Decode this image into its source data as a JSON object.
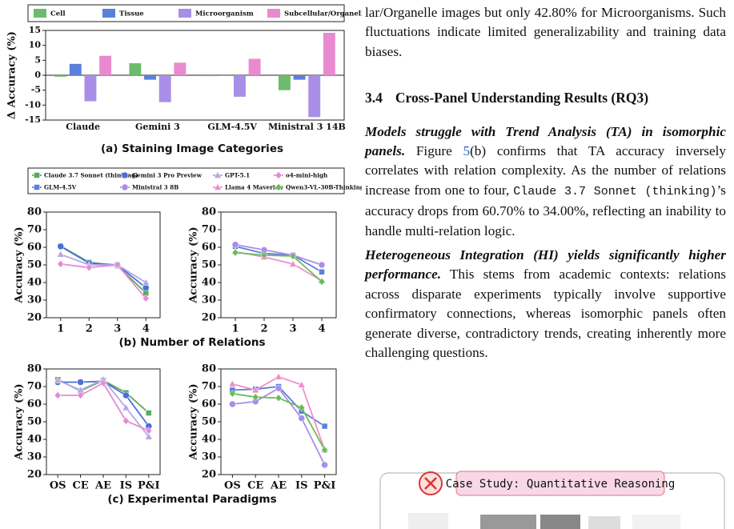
{
  "chart_data": [
    {
      "type": "bar",
      "ylabel": "Δ Accuracy (%)",
      "caption": "(a) Staining Image Categories",
      "categories": [
        "Claude",
        "Gemini 3",
        "GLM-4.5V",
        "Ministral 3 14B"
      ],
      "series": [
        {
          "name": "Cell",
          "color": "#6dbb6d",
          "values": [
            -0.5,
            4,
            -0.3,
            -5
          ]
        },
        {
          "name": "Tissue",
          "color": "#5b7fdc",
          "values": [
            3.8,
            -1.5,
            -0.2,
            -1.5
          ]
        },
        {
          "name": "Microorganism",
          "color": "#a98ee8",
          "values": [
            -8.7,
            -9,
            -7.2,
            -14
          ]
        },
        {
          "name": "Subcellular/Organelle",
          "color": "#e98ad0",
          "values": [
            6.5,
            4.2,
            5.5,
            14.2
          ]
        }
      ],
      "ylim": [
        -15,
        15
      ],
      "yticks": [
        -15,
        -10,
        -5,
        0,
        5,
        10,
        15
      ]
    },
    {
      "type": "line",
      "ylabel": "Accuracy (%)",
      "caption": "(b) Number of Relations",
      "categories": [
        "1",
        "2",
        "3",
        "4"
      ],
      "series": [
        {
          "name": "Claude 3.7 Sonnet (thinking)",
          "color": "#5aab5a",
          "marker": "square",
          "values": [
            60.7,
            51.5,
            49.5,
            34
          ]
        },
        {
          "name": "Gemini 3 Pro Preview",
          "color": "#4a6fd6",
          "marker": "circle",
          "values": [
            60.5,
            51,
            50,
            37
          ]
        },
        {
          "name": "GPT-5.1",
          "color": "#b5a6e8",
          "marker": "triangle",
          "values": [
            56,
            50,
            50,
            40
          ]
        },
        {
          "name": "o4-mini-high",
          "color": "#e58ad6",
          "marker": "diamond",
          "values": [
            50.5,
            48.5,
            50,
            31
          ]
        }
      ],
      "ylim": [
        20,
        80
      ],
      "yticks": [
        20,
        30,
        40,
        50,
        60,
        70,
        80
      ]
    },
    {
      "type": "line",
      "ylabel": "Accuracy (%)",
      "categories": [
        "1",
        "2",
        "3",
        "4"
      ],
      "series": [
        {
          "name": "GLM-4.5V",
          "color": "#5b7fdc",
          "marker": "square",
          "values": [
            60.5,
            56.5,
            55.5,
            46
          ]
        },
        {
          "name": "Ministral 3 8B",
          "color": "#a98ee8",
          "marker": "circle",
          "values": [
            61.5,
            58.5,
            55.5,
            50
          ]
        },
        {
          "name": "Llama 4 Maverick",
          "color": "#f08fc8",
          "marker": "triangle",
          "values": [
            57.5,
            54.5,
            50.5,
            41
          ]
        },
        {
          "name": "Qwen3-VL-30B-Thinking",
          "color": "#6cbb5a",
          "marker": "diamond",
          "values": [
            57,
            55.5,
            55,
            40.5
          ]
        }
      ],
      "ylim": [
        20,
        80
      ],
      "yticks": [
        20,
        30,
        40,
        50,
        60,
        70,
        80
      ]
    },
    {
      "type": "line",
      "ylabel": "Accuracy (%)",
      "caption": "(c) Experimental Paradigms",
      "categories": [
        "OS",
        "CE",
        "AE",
        "IS",
        "P&I"
      ],
      "series": [
        {
          "name": "Claude 3.7 Sonnet (thinking)",
          "color": "#5aab5a",
          "marker": "square",
          "values": [
            74,
            67.5,
            73.5,
            66.5,
            55
          ]
        },
        {
          "name": "Gemini 3 Pro Preview",
          "color": "#4a6fd6",
          "marker": "circle",
          "values": [
            72.5,
            72.5,
            73,
            65,
            47.5
          ]
        },
        {
          "name": "GPT-5.1",
          "color": "#b5a6e8",
          "marker": "triangle",
          "values": [
            73.5,
            68,
            74,
            58,
            41.5
          ]
        },
        {
          "name": "o4-mini-high",
          "color": "#e58ad6",
          "marker": "diamond",
          "values": [
            65,
            65,
            72,
            50.5,
            45
          ]
        }
      ],
      "ylim": [
        20,
        80
      ],
      "yticks": [
        20,
        30,
        40,
        50,
        60,
        70,
        80
      ]
    },
    {
      "type": "line",
      "ylabel": "Accuracy (%)",
      "categories": [
        "OS",
        "CE",
        "AE",
        "IS",
        "P&I"
      ],
      "series": [
        {
          "name": "GLM-4.5V",
          "color": "#5b7fdc",
          "marker": "square",
          "values": [
            68,
            68.5,
            70,
            56,
            47.5
          ]
        },
        {
          "name": "Ministral 3 8B",
          "color": "#a98ee8",
          "marker": "circle",
          "values": [
            60,
            61.5,
            69,
            52,
            25.5
          ]
        },
        {
          "name": "Llama 4 Maverick",
          "color": "#f08fc8",
          "marker": "triangle",
          "values": [
            71.5,
            68,
            75.5,
            71,
            34
          ]
        },
        {
          "name": "Qwen3-VL-30B-Thinking",
          "color": "#6cbb5a",
          "marker": "diamond",
          "values": [
            66,
            64,
            63.5,
            58,
            34
          ]
        }
      ],
      "ylim": [
        20,
        80
      ],
      "yticks": [
        20,
        30,
        40,
        50,
        60,
        70,
        80
      ]
    }
  ],
  "text": {
    "paragraph_1": "lar/Organelle images but only 42.80% for Microorganisms. Such fluctuations indicate limited generalizability and training data biases.",
    "section": {
      "number": "3.4",
      "title": "Cross-Panel Understanding Results (RQ3)"
    },
    "paragraph_2": {
      "lead": "Models struggle with Trend Analysis (TA) in isomorphic panels.",
      "parts": [
        " Figure ",
        "5",
        "(b) confirms that TA accuracy inversely correlates with relation complexity. As the number of relations increase from one to four, ",
        "Claude 3.7 Sonnet (thinking)",
        "’s accuracy drops from 60.70% to 34.00%, reflecting an inability to handle multi-relation logic."
      ]
    },
    "paragraph_3": {
      "lead": "Heterogeneous Integration (HI) yields significantly higher performance.",
      "body": " This stems from academic contexts: relations across disparate experiments typically involve supportive confirmatory connections, whereas isomorphic panels often generate diverse, contradictory trends, creating inherently more challenging questions."
    },
    "case_study": "Case Study: Quantitative Reasoning"
  }
}
